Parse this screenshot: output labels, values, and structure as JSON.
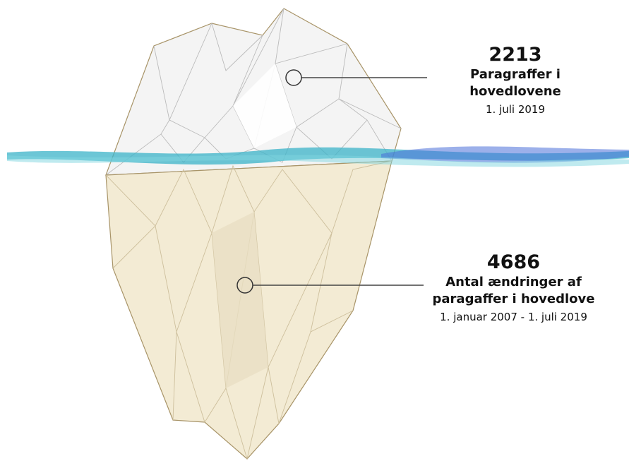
{
  "annotations": [
    {
      "value": "2213",
      "label": "Paragraffer i hovedlovene",
      "date": "1. juli 2019"
    },
    {
      "value": "4686",
      "label": "Antal ændringer af paragaffer i hovedlove",
      "date": "1. januar 2007 - 1. juli 2019"
    }
  ]
}
